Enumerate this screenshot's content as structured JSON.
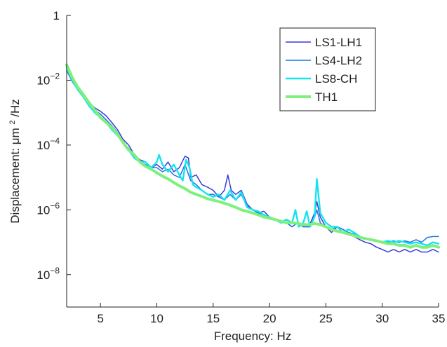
{
  "chart_data": {
    "type": "line",
    "xlabel": "Frequency: Hz",
    "ylabel_prefix": "Displacement: μm",
    "ylabel_sup": "2",
    "ylabel_suffix": "/Hz",
    "xlim": [
      2,
      35
    ],
    "ylim": [
      1e-09,
      1
    ],
    "yscale": "log",
    "grid": false,
    "legend_position": "top-right",
    "x_ticks": [
      5,
      10,
      15,
      20,
      25,
      30,
      35
    ],
    "x_tick_labels": [
      "5",
      "10",
      "15",
      "20",
      "25",
      "30",
      "35"
    ],
    "y_ticks": [
      1,
      0.01,
      0.0001,
      1e-06,
      1e-08
    ],
    "y_tick_labels": [
      {
        "base": "1",
        "exp": ""
      },
      {
        "base": "10",
        "exp": "−2"
      },
      {
        "base": "10",
        "exp": "−4"
      },
      {
        "base": "10",
        "exp": "−6"
      },
      {
        "base": "10",
        "exp": "−8"
      }
    ],
    "series": [
      {
        "name": "LS1-LH1",
        "color": "#3a3ad6",
        "width": 1.5,
        "points": [
          [
            2.0,
            0.02
          ],
          [
            2.5,
            0.01
          ],
          [
            3.0,
            0.006
          ],
          [
            3.5,
            0.0035
          ],
          [
            4.0,
            0.002
          ],
          [
            4.5,
            0.0014
          ],
          [
            5.0,
            0.0011
          ],
          [
            5.5,
            0.0008
          ],
          [
            6.0,
            0.0005
          ],
          [
            6.5,
            0.0003
          ],
          [
            7.0,
            0.00015
          ],
          [
            7.5,
            0.0001
          ],
          [
            8.0,
            5e-05
          ],
          [
            8.5,
            3.5e-05
          ],
          [
            9.0,
            3e-05
          ],
          [
            9.5,
            2e-05
          ],
          [
            10.0,
            2.5e-05
          ],
          [
            10.5,
            1.8e-05
          ],
          [
            11.0,
            3e-05
          ],
          [
            11.5,
            1.5e-05
          ],
          [
            12.0,
            2e-05
          ],
          [
            12.5,
            4.5e-05
          ],
          [
            12.8,
            4e-05
          ],
          [
            13.0,
            1e-05
          ],
          [
            13.5,
            1.2e-05
          ],
          [
            14.0,
            6e-06
          ],
          [
            14.5,
            5e-06
          ],
          [
            15.0,
            4e-06
          ],
          [
            15.5,
            2.5e-06
          ],
          [
            16.0,
            4e-06
          ],
          [
            16.3,
            1.2e-05
          ],
          [
            16.6,
            4e-06
          ],
          [
            17.0,
            3e-06
          ],
          [
            17.5,
            4e-06
          ],
          [
            18.0,
            1.5e-06
          ],
          [
            18.5,
            1e-06
          ],
          [
            19.0,
            8e-07
          ],
          [
            19.5,
            9e-07
          ],
          [
            20.0,
            6e-07
          ],
          [
            20.5,
            5e-07
          ],
          [
            21.0,
            4e-07
          ],
          [
            21.5,
            4e-07
          ],
          [
            22.0,
            3e-07
          ],
          [
            22.5,
            4e-07
          ],
          [
            23.0,
            3e-07
          ],
          [
            23.5,
            3e-07
          ],
          [
            24.0,
            8e-07
          ],
          [
            24.2,
            1.8e-06
          ],
          [
            24.5,
            6e-07
          ],
          [
            25.0,
            3e-07
          ],
          [
            25.5,
            2e-07
          ],
          [
            26.0,
            3e-07
          ],
          [
            26.5,
            2.5e-07
          ],
          [
            27.0,
            2e-07
          ],
          [
            27.5,
            1.5e-07
          ],
          [
            28.0,
            1.2e-07
          ],
          [
            28.5,
            1e-07
          ],
          [
            29.0,
            9e-08
          ],
          [
            29.5,
            7e-08
          ],
          [
            30.0,
            6e-08
          ],
          [
            30.5,
            5e-08
          ],
          [
            31.0,
            6e-08
          ],
          [
            31.5,
            5e-08
          ],
          [
            32.0,
            6e-08
          ],
          [
            32.5,
            5e-08
          ],
          [
            33.0,
            6e-08
          ],
          [
            33.5,
            5e-08
          ],
          [
            34.0,
            5e-08
          ],
          [
            34.5,
            6e-08
          ],
          [
            35.0,
            5e-08
          ]
        ]
      },
      {
        "name": "LS4-LH2",
        "color": "#1e73e8",
        "width": 1.5,
        "points": [
          [
            2.0,
            0.02
          ],
          [
            2.5,
            0.009
          ],
          [
            3.0,
            0.005
          ],
          [
            3.5,
            0.003
          ],
          [
            4.0,
            0.0018
          ],
          [
            4.5,
            0.0012
          ],
          [
            5.0,
            0.0009
          ],
          [
            5.5,
            0.0006
          ],
          [
            6.0,
            0.0004
          ],
          [
            6.5,
            0.00025
          ],
          [
            7.0,
            0.00012
          ],
          [
            7.5,
            8e-05
          ],
          [
            8.0,
            5e-05
          ],
          [
            8.5,
            3e-05
          ],
          [
            9.0,
            2.5e-05
          ],
          [
            9.5,
            2e-05
          ],
          [
            10.0,
            2e-05
          ],
          [
            10.5,
            1.5e-05
          ],
          [
            11.0,
            1.8e-05
          ],
          [
            11.5,
            1.2e-05
          ],
          [
            12.0,
            1e-05
          ],
          [
            12.5,
            2.5e-05
          ],
          [
            13.0,
            8e-06
          ],
          [
            13.5,
            6e-06
          ],
          [
            14.0,
            4e-06
          ],
          [
            14.5,
            3e-06
          ],
          [
            15.0,
            3e-06
          ],
          [
            15.5,
            2.5e-06
          ],
          [
            16.0,
            2e-06
          ],
          [
            16.5,
            3e-06
          ],
          [
            17.0,
            2e-06
          ],
          [
            17.5,
            3e-06
          ],
          [
            18.0,
            1.3e-06
          ],
          [
            18.5,
            1e-06
          ],
          [
            19.0,
            8e-07
          ],
          [
            19.5,
            7e-07
          ],
          [
            20.0,
            6e-07
          ],
          [
            20.5,
            5e-07
          ],
          [
            21.0,
            4e-07
          ],
          [
            21.5,
            4e-07
          ],
          [
            22.0,
            3e-07
          ],
          [
            22.5,
            4e-07
          ],
          [
            23.0,
            3e-07
          ],
          [
            23.5,
            3e-07
          ],
          [
            24.0,
            6e-07
          ],
          [
            24.2,
            1e-06
          ],
          [
            24.5,
            4e-07
          ],
          [
            25.0,
            3e-07
          ],
          [
            25.5,
            2.5e-07
          ],
          [
            26.0,
            3e-07
          ],
          [
            26.5,
            2.5e-07
          ],
          [
            27.0,
            2e-07
          ],
          [
            27.5,
            1.8e-07
          ],
          [
            28.0,
            1.5e-07
          ],
          [
            28.5,
            1.3e-07
          ],
          [
            29.0,
            1.2e-07
          ],
          [
            29.5,
            1.1e-07
          ],
          [
            30.0,
            1e-07
          ],
          [
            30.5,
            1e-07
          ],
          [
            31.0,
            1.1e-07
          ],
          [
            31.5,
            1e-07
          ],
          [
            32.0,
            1.1e-07
          ],
          [
            32.5,
            1e-07
          ],
          [
            33.0,
            1.2e-07
          ],
          [
            33.5,
            1e-07
          ],
          [
            34.0,
            1.4e-07
          ],
          [
            34.5,
            1.5e-07
          ],
          [
            35.0,
            1.5e-07
          ]
        ]
      },
      {
        "name": "LS8-CH",
        "color": "#17e3ee",
        "width": 2.4,
        "points": [
          [
            2.0,
            0.025
          ],
          [
            2.5,
            0.01
          ],
          [
            3.0,
            0.005
          ],
          [
            3.5,
            0.003
          ],
          [
            4.0,
            0.0016
          ],
          [
            4.5,
            0.001
          ],
          [
            5.0,
            0.0007
          ],
          [
            5.5,
            0.0005
          ],
          [
            6.0,
            0.0003
          ],
          [
            6.5,
            0.0002
          ],
          [
            7.0,
            0.00012
          ],
          [
            7.5,
            7e-05
          ],
          [
            8.0,
            4e-05
          ],
          [
            8.5,
            3e-05
          ],
          [
            9.0,
            3e-05
          ],
          [
            9.5,
            2e-05
          ],
          [
            10.0,
            3e-05
          ],
          [
            10.2,
            5e-05
          ],
          [
            10.5,
            2.5e-05
          ],
          [
            11.0,
            1.5e-05
          ],
          [
            11.5,
            2.5e-05
          ],
          [
            12.0,
            1.2e-05
          ],
          [
            12.3,
            8e-06
          ],
          [
            12.6,
            3.5e-05
          ],
          [
            12.9,
            2e-05
          ],
          [
            13.2,
            6e-06
          ],
          [
            13.5,
            5e-06
          ],
          [
            14.0,
            4e-06
          ],
          [
            14.5,
            3e-06
          ],
          [
            15.0,
            2.5e-06
          ],
          [
            15.5,
            3e-06
          ],
          [
            16.0,
            2e-06
          ],
          [
            16.5,
            4e-06
          ],
          [
            17.0,
            2e-06
          ],
          [
            17.5,
            3.5e-06
          ],
          [
            18.0,
            1.2e-06
          ],
          [
            18.5,
            1e-06
          ],
          [
            19.0,
            9e-07
          ],
          [
            19.5,
            7e-07
          ],
          [
            20.0,
            6e-07
          ],
          [
            20.5,
            5e-07
          ],
          [
            21.0,
            4e-07
          ],
          [
            21.5,
            5e-07
          ],
          [
            22.0,
            4e-07
          ],
          [
            22.3,
            1e-06
          ],
          [
            22.6,
            3e-07
          ],
          [
            23.0,
            4e-07
          ],
          [
            23.3,
            9e-07
          ],
          [
            23.6,
            3e-07
          ],
          [
            24.0,
            6e-07
          ],
          [
            24.2,
            9e-06
          ],
          [
            24.5,
            8e-07
          ],
          [
            25.0,
            4e-07
          ],
          [
            25.5,
            3e-07
          ],
          [
            26.0,
            3e-07
          ],
          [
            26.5,
            2e-07
          ],
          [
            27.0,
            2.5e-07
          ],
          [
            27.5,
            2e-07
          ],
          [
            28.0,
            1.5e-07
          ],
          [
            28.5,
            1.3e-07
          ],
          [
            29.0,
            1.2e-07
          ],
          [
            29.5,
            1.1e-07
          ],
          [
            30.0,
            1e-07
          ],
          [
            30.5,
            1.1e-07
          ],
          [
            31.0,
            1e-07
          ],
          [
            31.5,
            1.1e-07
          ],
          [
            32.0,
            1e-07
          ],
          [
            32.5,
            9e-08
          ],
          [
            33.0,
            1e-07
          ],
          [
            33.5,
            9e-08
          ],
          [
            34.0,
            8e-08
          ],
          [
            34.5,
            1e-07
          ],
          [
            35.0,
            9e-08
          ]
        ]
      },
      {
        "name": "TH1",
        "color": "#7ef07e",
        "width": 4.0,
        "points": [
          [
            2.0,
            0.03
          ],
          [
            2.5,
            0.012
          ],
          [
            3.0,
            0.006
          ],
          [
            3.5,
            0.0035
          ],
          [
            4.0,
            0.002
          ],
          [
            4.5,
            0.0012
          ],
          [
            5.0,
            0.0007
          ],
          [
            5.5,
            0.0005
          ],
          [
            6.0,
            0.00035
          ],
          [
            6.5,
            0.00022
          ],
          [
            7.0,
            0.00012
          ],
          [
            7.5,
            7e-05
          ],
          [
            8.0,
            5e-05
          ],
          [
            8.5,
            3e-05
          ],
          [
            9.0,
            2.2e-05
          ],
          [
            9.5,
            1.8e-05
          ],
          [
            10.0,
            1.4e-05
          ],
          [
            10.5,
            1.1e-05
          ],
          [
            11.0,
            9e-06
          ],
          [
            11.5,
            7e-06
          ],
          [
            12.0,
            5.5e-06
          ],
          [
            12.5,
            4.5e-06
          ],
          [
            13.0,
            3.5e-06
          ],
          [
            13.5,
            3e-06
          ],
          [
            14.0,
            2.6e-06
          ],
          [
            14.5,
            2.2e-06
          ],
          [
            15.0,
            2e-06
          ],
          [
            15.5,
            1.8e-06
          ],
          [
            16.0,
            1.6e-06
          ],
          [
            16.5,
            1.4e-06
          ],
          [
            17.0,
            1.2e-06
          ],
          [
            17.5,
            1e-06
          ],
          [
            18.0,
            9e-07
          ],
          [
            18.5,
            8e-07
          ],
          [
            19.0,
            7e-07
          ],
          [
            19.5,
            6e-07
          ],
          [
            20.0,
            5.5e-07
          ],
          [
            20.5,
            5e-07
          ],
          [
            21.0,
            4.5e-07
          ],
          [
            21.5,
            4e-07
          ],
          [
            22.0,
            4e-07
          ],
          [
            22.5,
            3.8e-07
          ],
          [
            23.0,
            3.5e-07
          ],
          [
            23.5,
            3.5e-07
          ],
          [
            24.0,
            3.8e-07
          ],
          [
            24.5,
            3.5e-07
          ],
          [
            25.0,
            3e-07
          ],
          [
            25.5,
            2.5e-07
          ],
          [
            26.0,
            2.2e-07
          ],
          [
            26.5,
            2e-07
          ],
          [
            27.0,
            1.8e-07
          ],
          [
            27.5,
            1.6e-07
          ],
          [
            28.0,
            1.4e-07
          ],
          [
            28.5,
            1.3e-07
          ],
          [
            29.0,
            1.2e-07
          ],
          [
            29.5,
            1.1e-07
          ],
          [
            30.0,
            1e-07
          ],
          [
            30.5,
            9e-08
          ],
          [
            31.0,
            9e-08
          ],
          [
            31.5,
            8e-08
          ],
          [
            32.0,
            8e-08
          ],
          [
            32.5,
            7e-08
          ],
          [
            33.0,
            8e-08
          ],
          [
            33.5,
            7e-08
          ],
          [
            34.0,
            7e-08
          ],
          [
            34.5,
            8e-08
          ],
          [
            35.0,
            7e-08
          ]
        ]
      }
    ]
  }
}
